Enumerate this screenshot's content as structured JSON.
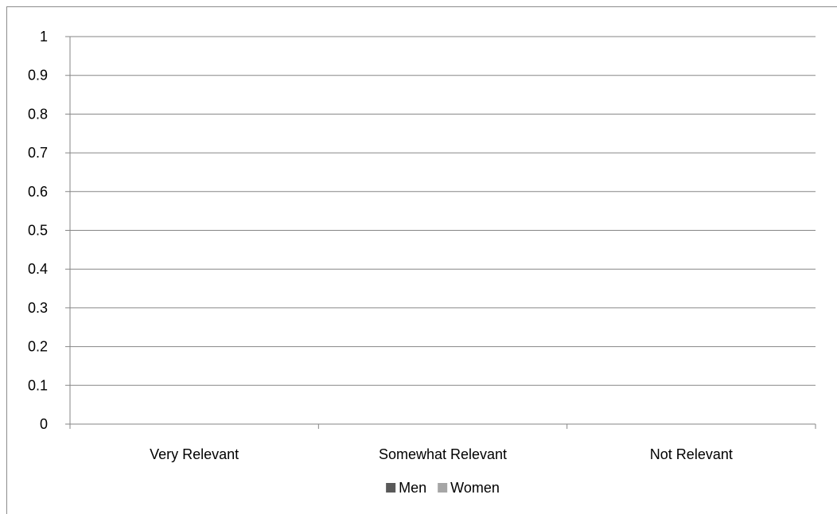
{
  "chart_data": {
    "type": "bar",
    "title": "",
    "xlabel": "",
    "ylabel": "",
    "categories": [
      "Very Relevant",
      "Somewhat Relevant",
      "Not Relevant"
    ],
    "series": [
      {
        "name": "Men",
        "values": [
          0,
          0,
          0
        ],
        "color": "#595959"
      },
      {
        "name": "Women",
        "values": [
          0,
          0,
          0
        ],
        "color": "#a6a6a6"
      }
    ],
    "ylim": [
      0,
      1
    ],
    "yticks": [
      "0",
      "0.1",
      "0.2",
      "0.3",
      "0.4",
      "0.5",
      "0.6",
      "0.7",
      "0.8",
      "0.9",
      "1"
    ],
    "grid": true,
    "legend_position": "bottom",
    "gridline_color": "#868686",
    "axis_color": "#868686"
  }
}
